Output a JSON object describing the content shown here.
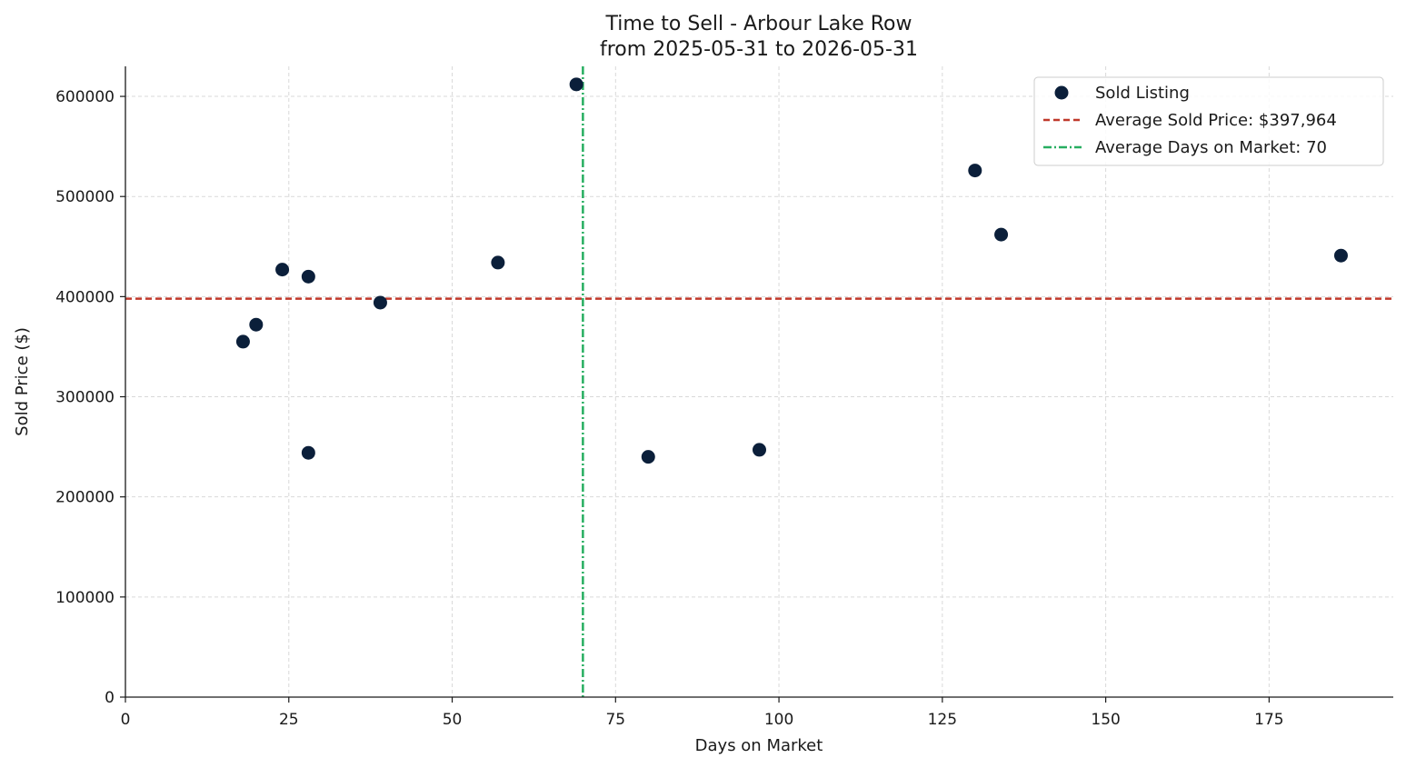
{
  "chart_data": {
    "type": "scatter",
    "title": "Time to Sell - Arbour Lake Row",
    "subtitle": "from 2025-05-31 to 2026-05-31",
    "xlabel": "Days on Market",
    "ylabel": "Sold Price ($)",
    "xlim": [
      0,
      194
    ],
    "ylim": [
      0,
      630000
    ],
    "xticks": [
      0,
      25,
      50,
      75,
      100,
      125,
      150,
      175
    ],
    "yticks": [
      0,
      100000,
      200000,
      300000,
      400000,
      500000,
      600000
    ],
    "grid": true,
    "legend_position": "top-right",
    "series": [
      {
        "name": "Sold Listing",
        "color": "#0b1f3a",
        "points": [
          {
            "x": 18,
            "y": 355000
          },
          {
            "x": 20,
            "y": 372000
          },
          {
            "x": 24,
            "y": 427000
          },
          {
            "x": 28,
            "y": 420000
          },
          {
            "x": 28,
            "y": 244000
          },
          {
            "x": 39,
            "y": 394000
          },
          {
            "x": 57,
            "y": 434000
          },
          {
            "x": 69,
            "y": 612000
          },
          {
            "x": 80,
            "y": 240000
          },
          {
            "x": 97,
            "y": 247000
          },
          {
            "x": 130,
            "y": 526000
          },
          {
            "x": 134,
            "y": 462000
          },
          {
            "x": 186,
            "y": 441000
          }
        ]
      }
    ],
    "reference_lines": [
      {
        "orientation": "horizontal",
        "value": 397964,
        "label": "Average Sold Price: $397,964",
        "color": "#c0392b",
        "style": "dashed"
      },
      {
        "orientation": "vertical",
        "value": 70,
        "label": "Average Days on Market: 70",
        "color": "#27ae60",
        "style": "dashdot"
      }
    ]
  }
}
